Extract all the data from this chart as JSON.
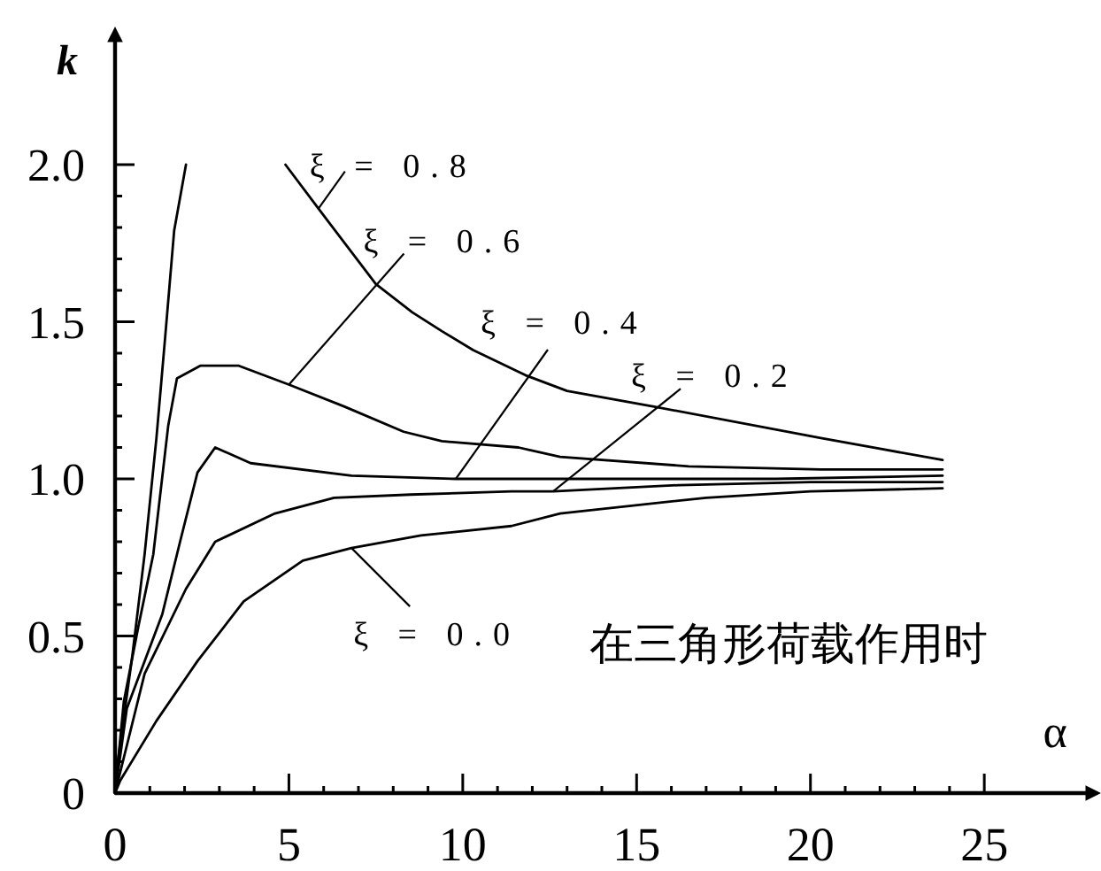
{
  "chart_data": {
    "type": "line",
    "xlabel": "α",
    "ylabel": "k",
    "xlim": [
      0,
      28
    ],
    "ylim": [
      0,
      2.4
    ],
    "xticks": [
      0,
      {
        "value": 1,
        "label": null
      },
      {
        "value": 2,
        "label": null
      },
      {
        "value": 3,
        "label": null
      },
      {
        "value": 4,
        "label": null
      },
      5,
      {
        "value": 6,
        "label": null
      },
      {
        "value": 7,
        "label": null
      },
      {
        "value": 8,
        "label": null
      },
      {
        "value": 9,
        "label": null
      },
      10,
      {
        "value": 11,
        "label": null
      },
      {
        "value": 12,
        "label": null
      },
      {
        "value": 13,
        "label": null
      },
      {
        "value": 14,
        "label": null
      },
      15,
      {
        "value": 16,
        "label": null
      },
      {
        "value": 17,
        "label": null
      },
      {
        "value": 18,
        "label": null
      },
      {
        "value": 19,
        "label": null
      },
      20,
      {
        "value": 21,
        "label": null
      },
      {
        "value": 22,
        "label": null
      },
      {
        "value": 23,
        "label": null
      },
      {
        "value": 24,
        "label": null
      },
      25
    ],
    "yticks": [
      0,
      {
        "value": 0.1,
        "label": null
      },
      {
        "value": 0.2,
        "label": null
      },
      {
        "value": 0.3,
        "label": null
      },
      {
        "value": 0.4,
        "label": null
      },
      0.5,
      {
        "value": 0.6,
        "label": null
      },
      {
        "value": 0.7,
        "label": null
      },
      {
        "value": 0.8,
        "label": null
      },
      {
        "value": 0.9,
        "label": null
      },
      {
        "value": 1,
        "label": "1.0"
      },
      {
        "value": 1.1,
        "label": null
      },
      {
        "value": 1.2,
        "label": null
      },
      {
        "value": 1.3,
        "label": null
      },
      {
        "value": 1.4,
        "label": null
      },
      1.5,
      {
        "value": 1.6,
        "label": null
      },
      {
        "value": 1.7,
        "label": null
      },
      {
        "value": 1.8,
        "label": null
      },
      {
        "value": 1.9,
        "label": null
      },
      {
        "value": 2,
        "label": "2.0"
      }
    ],
    "series": [
      {
        "color": "#000000",
        "x": [
          0,
          0.08,
          0.5,
          0.85,
          1.19,
          1.44,
          1.7,
          2.04
        ],
        "values": [
          0,
          0.1,
          0.44,
          0.76,
          1.13,
          1.45,
          1.79,
          2.0
        ]
      },
      {
        "color": "#000000",
        "x": [
          4.9,
          5.85,
          7.5,
          8.55,
          9.4,
          10.3,
          11.8,
          13.0,
          15.5,
          20.3,
          23.8
        ],
        "values": [
          2.0,
          1.86,
          1.62,
          1.53,
          1.47,
          1.41,
          1.33,
          1.28,
          1.23,
          1.13,
          1.06
        ]
      },
      {
        "color": "#000000",
        "x": [
          0,
          0.25,
          0.67,
          1.1,
          1.53,
          1.78,
          2.45,
          3.56,
          5.0,
          6.6,
          8.3,
          9.4,
          11.6,
          12.8,
          16.5,
          20.3,
          23.8
        ],
        "values": [
          0,
          0.29,
          0.53,
          0.76,
          1.17,
          1.32,
          1.36,
          1.36,
          1.3,
          1.23,
          1.15,
          1.12,
          1.1,
          1.07,
          1.04,
          1.03,
          1.03
        ]
      },
      {
        "color": "#000000",
        "x": [
          0,
          0.34,
          0.85,
          1.36,
          1.87,
          2.37,
          2.88,
          3.9,
          6.8,
          9.8,
          14.0,
          19.0,
          23.8
        ],
        "values": [
          0,
          0.27,
          0.42,
          0.57,
          0.8,
          1.02,
          1.1,
          1.05,
          1.01,
          1.0,
          1.0,
          1.0,
          1.01
        ]
      },
      {
        "color": "#000000",
        "x": [
          0,
          0.85,
          2.04,
          2.88,
          4.6,
          6.3,
          8.5,
          11.4,
          12.6,
          16.2,
          20.0,
          23.8
        ],
        "values": [
          0,
          0.38,
          0.65,
          0.8,
          0.89,
          0.94,
          0.95,
          0.96,
          0.96,
          0.98,
          0.99,
          0.99
        ]
      },
      {
        "color": "#000000",
        "x": [
          0,
          0.15,
          1.19,
          2.37,
          3.7,
          5.4,
          6.8,
          8.8,
          11.4,
          12.8,
          17.0,
          20.0,
          23.8
        ],
        "values": [
          0,
          0.04,
          0.23,
          0.42,
          0.61,
          0.74,
          0.78,
          0.82,
          0.85,
          0.89,
          0.94,
          0.96,
          0.97
        ]
      }
    ],
    "annotations": [
      {
        "text": "ξ = 0.8",
        "x": 5.85,
        "y": 1.86
      },
      {
        "text": "ξ = 0.6",
        "x": 5.0,
        "y": 1.3
      },
      {
        "text": "ξ = 0.4",
        "x": 9.8,
        "y": 1.0
      },
      {
        "text": "ξ = 0.2",
        "x": 12.6,
        "y": 0.96
      },
      {
        "text": "ξ = 0.0",
        "x": 6.8,
        "y": 0.78
      },
      "在三角形荷载作用时"
    ]
  }
}
